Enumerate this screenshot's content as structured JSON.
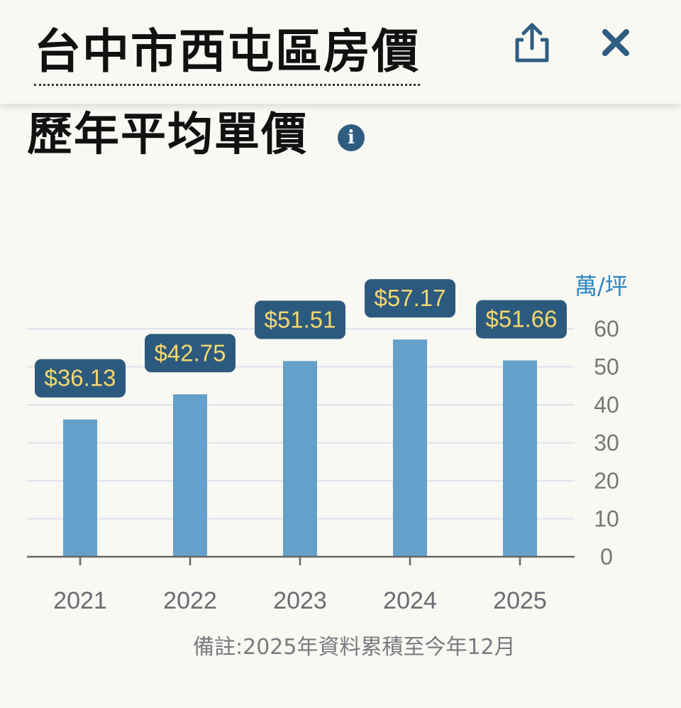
{
  "header": {
    "title": "台中市西屯區房價",
    "share_icon": "share-icon",
    "close_icon": "close-icon"
  },
  "section": {
    "title": "歷年平均單價",
    "info_icon": "info-icon",
    "info_glyph": "i"
  },
  "colors": {
    "bar": "#64a0ca",
    "label_bg": "#2c5a7e",
    "label_text": "#f5d76e",
    "grid": "#dde3ee",
    "axis": "#666666",
    "unit": "#2a86c2",
    "accent_icon": "#2f5d82"
  },
  "chart_data": {
    "type": "bar",
    "categories": [
      "2021",
      "2022",
      "2023",
      "2024",
      "2025"
    ],
    "values": [
      36.13,
      42.75,
      51.51,
      57.17,
      51.66
    ],
    "data_labels": [
      "$36.13",
      "$42.75",
      "$51.51",
      "$57.17",
      "$51.66"
    ],
    "ylabel": "萬/坪",
    "ylim": [
      0,
      60
    ],
    "yticks": [
      0,
      10,
      20,
      30,
      40,
      50,
      60
    ],
    "grid": true,
    "y_axis_side": "right"
  },
  "note": "備註:2025年資料累積至今年12月"
}
